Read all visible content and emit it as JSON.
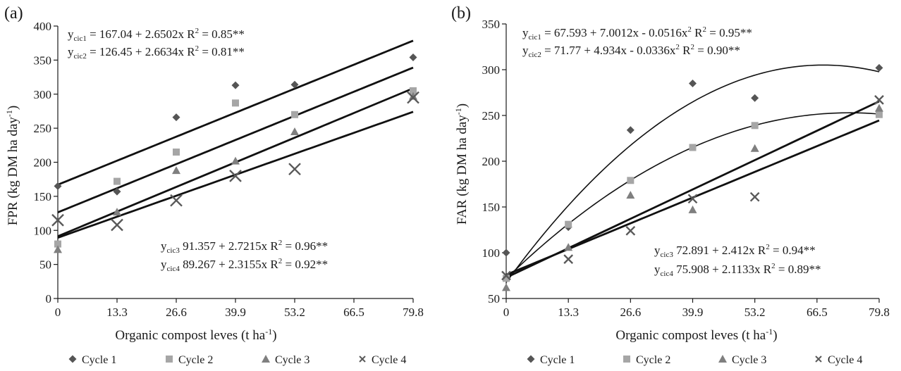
{
  "chart_data": [
    {
      "panel_label": "(a)",
      "type": "scatter",
      "xlabel": "Organic compost leves (t ha",
      "xlabel_sup": "-1",
      "xlabel_end": ")",
      "ylabel": "FPR (kg DM ha day",
      "ylabel_sup": "-1",
      "ylabel_end": ")",
      "x": [
        0,
        13.3,
        26.6,
        39.9,
        53.2,
        79.8
      ],
      "x_ticks": [
        "0",
        "13.3",
        "26.6",
        "39.9",
        "53.2",
        "66.5",
        "79.8"
      ],
      "xlim": [
        0,
        79.8
      ],
      "ylim": [
        0,
        400
      ],
      "y_ticks": [
        0,
        50,
        100,
        150,
        200,
        250,
        300,
        350,
        400
      ],
      "grid": false,
      "legend_position": "bottom",
      "series": [
        {
          "name": "Cycle 1",
          "marker": "diamond",
          "values": [
            165,
            157,
            266,
            313,
            314,
            354
          ]
        },
        {
          "name": "Cycle 2",
          "marker": "square",
          "values": [
            80,
            172,
            215,
            287,
            270,
            305
          ]
        },
        {
          "name": "Cycle 3",
          "marker": "triangle",
          "values": [
            72,
            127,
            188,
            202,
            245,
            297
          ]
        },
        {
          "name": "Cycle 4",
          "marker": "cross",
          "values": [
            115,
            108,
            144,
            180,
            190,
            295
          ]
        }
      ],
      "fits": [
        {
          "type": "linear",
          "coef": [
            167.04,
            2.6502
          ]
        },
        {
          "type": "linear",
          "coef": [
            126.45,
            2.6634
          ]
        },
        {
          "type": "linear",
          "coef": [
            91.357,
            2.7215
          ]
        },
        {
          "type": "linear",
          "coef": [
            89.267,
            2.3155
          ]
        }
      ],
      "equations": [
        {
          "y": "y",
          "sub": "cic1",
          "text": " =  167.04 + 2.6502x   R",
          "r2_sup": "2",
          "r2_text": " = 0.85**"
        },
        {
          "y": "y",
          "sub": "cic2",
          "text": " =  126.45 + 2.6634x   R",
          "r2_sup": "2",
          "r2_text": " = 0.81**"
        },
        {
          "y": "y",
          "sub": "cic3",
          "text": "  91.357 + 2.7215x    R",
          "r2_sup": "2",
          "r2_text": " = 0.96**"
        },
        {
          "y": "y",
          "sub": "cic4",
          "text": "  89.267 + 2.3155x    R",
          "r2_sup": "2",
          "r2_text": " = 0.92**"
        }
      ]
    },
    {
      "panel_label": "(b)",
      "type": "scatter",
      "xlabel": "Organic compost leves (t ha",
      "xlabel_sup": "-1",
      "xlabel_end": ")",
      "ylabel": "FAR (kg DM ha day",
      "ylabel_sup": "-1",
      "ylabel_end": ")",
      "x": [
        0,
        13.3,
        26.6,
        39.9,
        53.2,
        79.8
      ],
      "x_ticks": [
        "0",
        "13.3",
        "26.6",
        "39.9",
        "53.2",
        "66.5",
        "79.8"
      ],
      "xlim": [
        0,
        79.8
      ],
      "ylim": [
        50,
        350
      ],
      "y_ticks": [
        50,
        100,
        150,
        200,
        250,
        300,
        350
      ],
      "grid": false,
      "legend_position": "bottom",
      "series": [
        {
          "name": "Cycle 1",
          "marker": "diamond",
          "values": [
            100,
            128,
            234,
            285,
            269,
            302
          ]
        },
        {
          "name": "Cycle 2",
          "marker": "square",
          "values": [
            72,
            131,
            179,
            215,
            239,
            251
          ]
        },
        {
          "name": "Cycle 3",
          "marker": "triangle",
          "values": [
            62,
            106,
            163,
            147,
            214,
            258
          ]
        },
        {
          "name": "Cycle 4",
          "marker": "cross",
          "values": [
            75,
            93,
            124,
            159,
            161,
            267
          ]
        }
      ],
      "fits": [
        {
          "type": "quadratic",
          "coef": [
            67.593,
            7.0012,
            -0.0516
          ]
        },
        {
          "type": "quadratic",
          "coef": [
            71.77,
            4.934,
            -0.0336
          ]
        },
        {
          "type": "linear",
          "coef": [
            72.891,
            2.412
          ]
        },
        {
          "type": "linear",
          "coef": [
            75.908,
            2.1133
          ]
        }
      ],
      "equations": [
        {
          "y": "y",
          "sub": "cic1",
          "text": " =  67.593 + 7.0012x - 0.0516x",
          "x2_sup": "2",
          "r2_text_pre": "   R",
          "r2_sup": "2",
          "r2_text": " = 0.95**"
        },
        {
          "y": "y",
          "sub": "cic2",
          "text": " =  71.77 + 4.934x - 0.0336x",
          "x2_sup": "2",
          "r2_text_pre": "   R",
          "r2_sup": "2",
          "r2_text": " = 0.90**"
        },
        {
          "y": "y",
          "sub": "cic3",
          "text": "  72.891 + 2.412x    R",
          "r2_sup": "2",
          "r2_text": " = 0.94**"
        },
        {
          "y": "y",
          "sub": "cic4",
          "text": "  75.908 + 2.1133x   R",
          "r2_sup": "2",
          "r2_text": " = 0.89**"
        }
      ]
    }
  ],
  "colors": {
    "cycle1": "#555555",
    "cycle2": "#a6a6a6",
    "cycle3": "#7f7f7f",
    "cycle4": "#595959",
    "axis": "#1a1a1a",
    "fit": "#111111"
  }
}
